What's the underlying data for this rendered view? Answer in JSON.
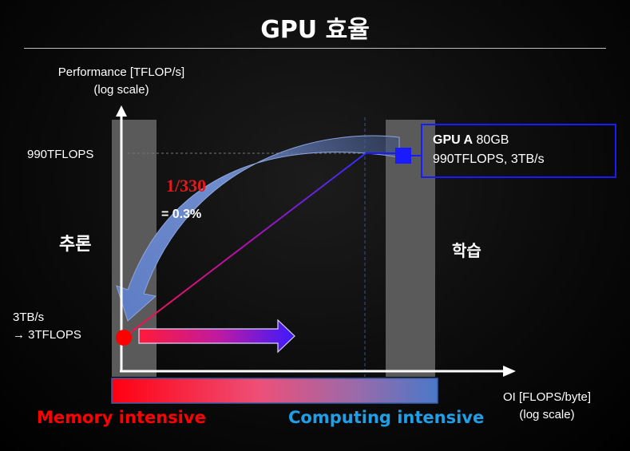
{
  "slide": {
    "title": "GPU 효율",
    "y_axis_label_line1": "Performance [TFLOP/s]",
    "y_axis_label_line2": "(log scale)",
    "x_axis_label_line1": "OI [FLOPS/byte]",
    "x_axis_label_line2": "(log scale)",
    "y_tick_high": "990TFLOPS",
    "y_tick_low_line1": "3TB/s",
    "y_tick_low_line2": "→ 3TFLOPS",
    "inference_label": "추론",
    "training_label": "학습",
    "ratio_label": "1/330",
    "ratio_percent": "= 0.3%",
    "gpu_name": "GPU A",
    "gpu_memory": "80GB",
    "gpu_specs": "990TFLOPS, 3TB/s",
    "memory_intensive_label": "Memory intensive",
    "computing_intensive_label": "Computing intensive"
  },
  "colors": {
    "memory": "#ff0000",
    "computing": "#1ea0e8",
    "gpu_box": "#1a1aff",
    "ratio": "#e01b1b",
    "zone": "#5a5a5a",
    "curve_arrow": "#6a86c8"
  }
}
